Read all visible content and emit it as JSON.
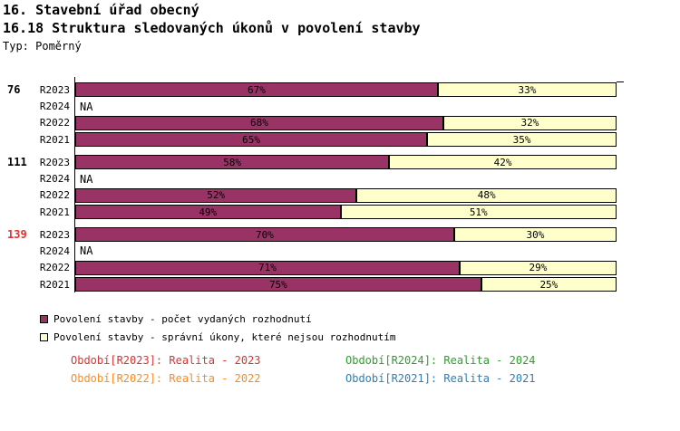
{
  "header": {
    "title": "16. Stavební úřad obecný",
    "subtitle": "16.18 Struktura sledovaných úkonů v povolení stavby",
    "type_label": "Typ: Poměrný"
  },
  "chart_data": {
    "type": "bar",
    "orientation": "horizontal",
    "stacked": true,
    "unit": "%",
    "x_range": [
      0,
      100
    ],
    "na_label": "NA",
    "grid": false,
    "legend_position": "bottom-left",
    "series": [
      {
        "name": "Povolení stavby - počet vydaných rozhodnutí",
        "color": "#993366"
      },
      {
        "name": "Povolení stavby - správní úkony, které nejsou rozhodnutím",
        "color": "#ffffcc"
      }
    ],
    "groups": [
      {
        "label": "76",
        "label_color": "#000000",
        "rows": [
          {
            "period": "R2023",
            "values": [
              67,
              33
            ]
          },
          {
            "period": "R2024",
            "values": null
          },
          {
            "period": "R2022",
            "values": [
              68,
              32
            ]
          },
          {
            "period": "R2021",
            "values": [
              65,
              35
            ]
          }
        ]
      },
      {
        "label": "111",
        "label_color": "#000000",
        "rows": [
          {
            "period": "R2023",
            "values": [
              58,
              42
            ]
          },
          {
            "period": "R2024",
            "values": null
          },
          {
            "period": "R2022",
            "values": [
              52,
              48
            ]
          },
          {
            "period": "R2021",
            "values": [
              49,
              51
            ]
          }
        ]
      },
      {
        "label": "139",
        "label_color": "#dd3333",
        "rows": [
          {
            "period": "R2023",
            "values": [
              70,
              30
            ]
          },
          {
            "period": "R2024",
            "values": null
          },
          {
            "period": "R2022",
            "values": [
              71,
              29
            ]
          },
          {
            "period": "R2021",
            "values": [
              75,
              25
            ]
          }
        ]
      }
    ]
  },
  "legend": {
    "items": [
      {
        "label": "Povolení stavby - počet vydaných rozhodnutí",
        "color": "#993366"
      },
      {
        "label": "Povolení stavby - správní úkony, které nejsou rozhodnutím",
        "color": "#ffffcc"
      }
    ]
  },
  "footer": {
    "items": [
      {
        "label": "Období[R2023]: Realita - 2023",
        "color": "#dd3333"
      },
      {
        "label": "Období[R2024]: Realita - 2024",
        "color": "#2f9e2f"
      },
      {
        "label": "Období[R2022]: Realita - 2022",
        "color": "#ff8c1a"
      },
      {
        "label": "Období[R2021]: Realita - 2021",
        "color": "#2e7fb5"
      }
    ]
  }
}
